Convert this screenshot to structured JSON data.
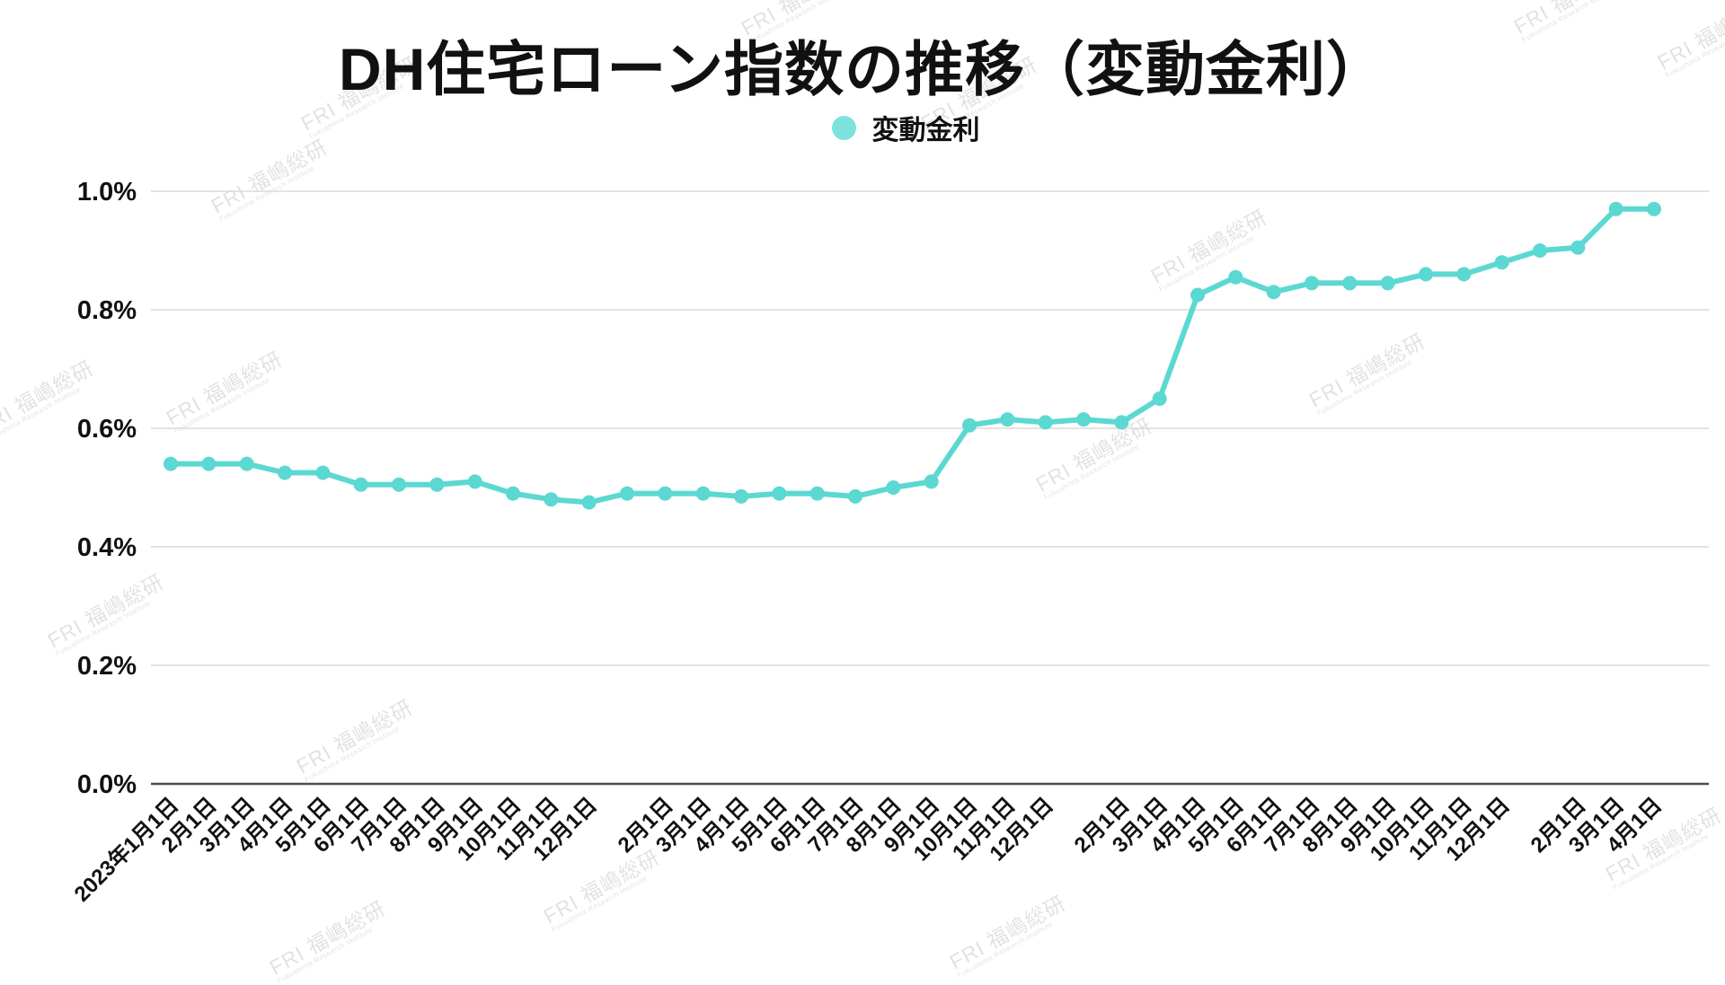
{
  "title": "DH住宅ローン指数の推移（変動金利）",
  "legend": {
    "label": "変動金利"
  },
  "watermark": {
    "text": "FRI 福嶋総研",
    "subtext": "Fukushima Research Institute"
  },
  "colors": {
    "line": "#5CD8D2",
    "marker": "#5CD8D2",
    "legend_dot": "#7CE2DC",
    "grid": "#DADADA",
    "axis": "#4D4D4D",
    "text": "#111111",
    "watermark": "#CBCBCB"
  },
  "chart_data": {
    "type": "line",
    "title": "DH住宅ローン指数の推移（変動金利）",
    "legend_position": "top",
    "grid": true,
    "ylim": [
      0,
      1.0
    ],
    "y_ticks": [
      {
        "label": "1.0%",
        "value": 1.0
      },
      {
        "label": "0.8%",
        "value": 0.8
      },
      {
        "label": "0.6%",
        "value": 0.6
      },
      {
        "label": "0.4%",
        "value": 0.4
      },
      {
        "label": "0.2%",
        "value": 0.2
      },
      {
        "label": "0.0%",
        "value": 0.0
      }
    ],
    "categories": [
      "2023年1月1日",
      "2月1日",
      "3月1日",
      "4月1日",
      "5月1日",
      "6月1日",
      "7月1日",
      "8月1日",
      "9月1日",
      "10月1日",
      "11月1日",
      "12月1日",
      "",
      "2月1日",
      "3月1日",
      "4月1日",
      "5月1日",
      "6月1日",
      "7月1日",
      "8月1日",
      "9月1日",
      "10月1日",
      "11月1日",
      "12月1日",
      "",
      "2月1日",
      "3月1日",
      "4月1日",
      "5月1日",
      "6月1日",
      "7月1日",
      "8月1日",
      "9月1日",
      "10月1日",
      "11月1日",
      "12月1日",
      "",
      "2月1日",
      "3月1日",
      "4月1日"
    ],
    "series": [
      {
        "name": "変動金利",
        "unit": "%",
        "values": [
          0.54,
          0.54,
          0.54,
          0.525,
          0.525,
          0.505,
          0.505,
          0.505,
          0.51,
          0.49,
          0.48,
          0.475,
          0.49,
          0.49,
          0.49,
          0.485,
          0.49,
          0.49,
          0.485,
          0.5,
          0.51,
          0.605,
          0.615,
          0.61,
          0.615,
          0.61,
          0.65,
          0.825,
          0.855,
          0.83,
          0.845,
          0.845,
          0.845,
          0.86,
          0.86,
          0.88,
          0.9,
          0.905,
          0.97,
          0.97
        ]
      }
    ]
  }
}
